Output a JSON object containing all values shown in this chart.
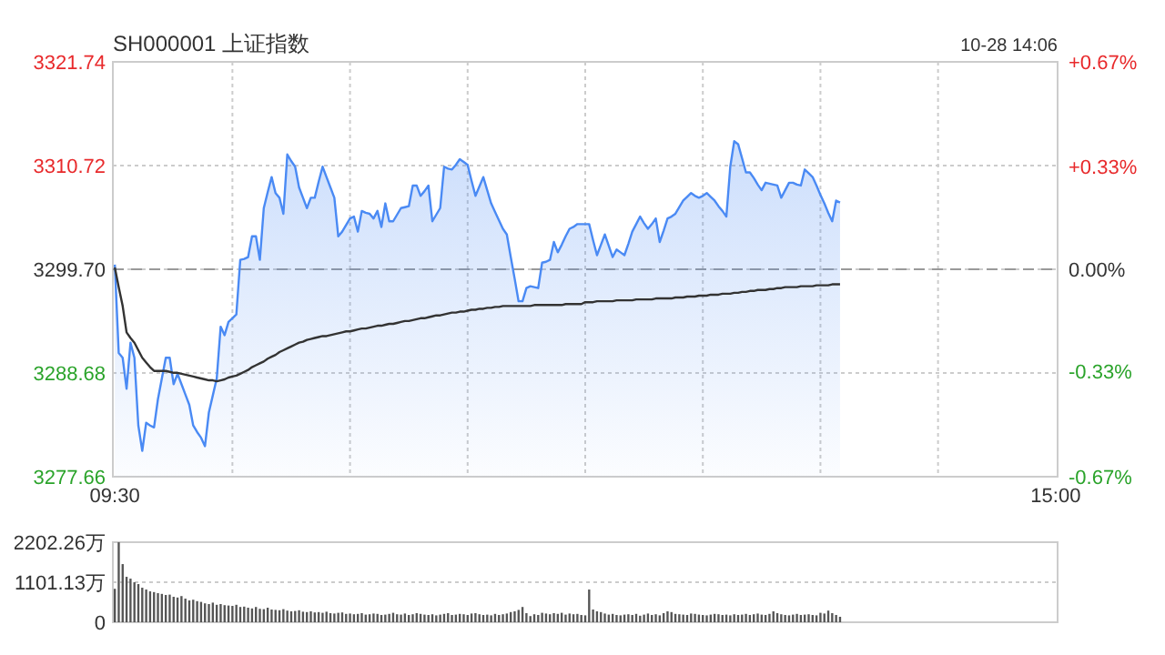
{
  "chart_data": [
    {
      "type": "area",
      "title": "SH000001 上证指数",
      "annotations": [
        "10-28 14:06"
      ],
      "categories": [
        "09:30",
        null,
        null,
        null,
        null,
        null,
        null,
        null,
        null,
        null,
        null,
        null,
        null,
        null,
        null,
        null,
        null,
        null,
        null,
        null,
        null,
        null,
        null,
        null,
        null,
        null,
        null,
        null,
        null,
        null,
        null,
        null,
        null,
        null,
        null,
        null,
        null,
        null,
        null,
        null,
        null,
        null,
        null,
        null,
        null,
        null,
        null,
        null,
        null,
        null,
        null,
        null,
        null,
        null,
        null,
        null,
        null,
        null,
        null,
        null,
        null,
        null,
        null,
        null,
        null,
        null,
        null,
        null,
        null,
        null,
        null,
        null,
        null,
        null,
        null,
        null,
        null,
        null,
        null,
        null,
        null,
        null,
        null,
        null,
        null,
        null,
        null,
        null,
        null,
        null,
        null,
        null,
        null,
        null,
        null,
        null,
        null,
        null,
        null,
        null,
        null,
        null,
        null,
        null,
        null,
        null,
        null,
        null,
        null,
        null,
        null,
        null,
        null,
        null,
        null,
        null,
        null,
        null,
        null,
        null,
        null,
        null,
        null,
        null,
        null,
        null,
        null,
        null,
        null,
        null,
        null,
        null,
        null,
        null,
        null,
        null,
        null,
        null,
        null,
        null,
        null,
        null,
        null,
        null,
        null,
        null,
        null,
        null,
        null,
        null,
        null,
        null,
        null,
        null,
        null,
        null,
        null,
        null,
        null,
        null,
        null,
        null,
        null,
        null,
        null,
        null,
        null,
        null,
        null,
        null,
        null,
        null,
        null,
        null,
        null,
        null,
        null,
        null,
        null,
        null,
        null,
        null,
        null,
        null,
        null,
        null,
        null,
        null,
        null,
        null,
        null,
        null,
        null,
        null,
        null,
        null,
        null,
        null,
        null,
        null,
        null,
        null,
        null,
        null,
        null,
        null,
        null,
        null,
        null,
        null,
        null,
        null,
        null,
        null,
        null,
        null,
        null,
        null,
        null,
        null,
        null,
        null,
        null,
        null,
        null,
        null,
        null,
        null,
        null,
        null,
        null,
        null,
        null,
        null,
        null,
        null,
        null,
        null,
        null,
        null,
        "15:00"
      ],
      "ylim": [
        3277.66,
        3321.74
      ],
      "yticks": [
        3277.66,
        3288.68,
        {
          "value": 3299.7,
          "label": "3299.70"
        },
        3310.72,
        3321.74
      ],
      "y2lim": [
        -0.67,
        0.67
      ],
      "y2ticks": [
        {
          "value": -0.67,
          "label": "-0.67%"
        },
        {
          "value": -0.33,
          "label": "-0.33%"
        },
        {
          "value": 0,
          "label": "0.00%"
        },
        {
          "value": 0.33,
          "label": "+0.33%"
        },
        {
          "value": 0.67,
          "label": "+0.67%"
        }
      ],
      "grid": true,
      "ref_lines": [
        {
          "axis": "y",
          "value": 3299.7,
          "line_style": "dashed",
          "color": "#999999"
        }
      ],
      "series": [
        {
          "color": "#4a8af4",
          "values": [
            3300.2,
            3290.8,
            3290.3,
            3287.0,
            3291.9,
            3290.3,
            3283.1,
            3280.4,
            3283.4,
            3283.1,
            3282.9,
            3285.9,
            3288.1,
            3290.3,
            3290.3,
            3287.5,
            3288.6,
            3287.5,
            3286.4,
            3285.3,
            3283.1,
            3282.4,
            3281.8,
            3280.9,
            3284.5,
            3286.3,
            3288.1,
            3293.6,
            3292.7,
            3294.1,
            3294.5,
            3294.9,
            3300.7,
            3300.8,
            3301.0,
            3303.2,
            3303.2,
            3300.7,
            3306.2,
            3307.9,
            3309.5,
            3307.8,
            3307.3,
            3305.6,
            3311.9,
            3311.2,
            3310.6,
            3308.4,
            3307.3,
            3306.2,
            3307.3,
            3307.3,
            3309.0,
            3310.6,
            3309.5,
            3308.4,
            3307.3,
            3303.2,
            3303.7,
            3304.4,
            3305.1,
            3305.3,
            3303.7,
            3305.9,
            3305.7,
            3305.6,
            3305.1,
            3305.9,
            3304.2,
            3306.7,
            3304.8,
            3304.8,
            3305.5,
            3306.2,
            3306.3,
            3306.4,
            3308.6,
            3308.6,
            3307.5,
            3308.0,
            3308.6,
            3304.8,
            3305.5,
            3306.2,
            3310.6,
            3310.4,
            3310.3,
            3310.8,
            3311.4,
            3311.1,
            3310.8,
            3309.1,
            3307.5,
            3308.5,
            3309.5,
            3308.1,
            3306.7,
            3305.8,
            3304.9,
            3304.0,
            3303.4,
            3301.0,
            3298.7,
            3296.3,
            3296.3,
            3297.7,
            3297.9,
            3297.8,
            3297.7,
            3300.4,
            3300.5,
            3300.7,
            3302.6,
            3301.5,
            3302.3,
            3303.2,
            3304.0,
            3304.2,
            3304.5,
            3304.5,
            3304.5,
            3304.5,
            3302.8,
            3301.2,
            3302.3,
            3303.4,
            3302.2,
            3301.0,
            3301.8,
            3301.5,
            3301.2,
            3302.4,
            3303.7,
            3304.5,
            3305.3,
            3304.6,
            3304.0,
            3304.5,
            3305.1,
            3302.6,
            3303.8,
            3305.1,
            3305.3,
            3305.6,
            3306.3,
            3307.0,
            3307.4,
            3307.8,
            3307.5,
            3307.3,
            3307.5,
            3307.8,
            3307.4,
            3307.0,
            3306.4,
            3305.9,
            3305.3,
            3310.6,
            3313.3,
            3313.0,
            3311.5,
            3310.0,
            3310.0,
            3309.4,
            3308.7,
            3308.1,
            3308.9,
            3308.8,
            3308.7,
            3308.6,
            3307.3,
            3308.1,
            3308.9,
            3308.9,
            3308.7,
            3308.6,
            3310.3,
            3309.9,
            3309.5,
            3308.6,
            3307.6,
            3306.7,
            3305.7,
            3304.8,
            3307.0,
            3306.8,
            null,
            null,
            null,
            null,
            null,
            null,
            null,
            null,
            null,
            null,
            null,
            null,
            null,
            null,
            null,
            null,
            null,
            null,
            null,
            null,
            null,
            null,
            null,
            null,
            null,
            null,
            null,
            null,
            null,
            null,
            null,
            null,
            null,
            null,
            null,
            null,
            null,
            null,
            null,
            null,
            null,
            null,
            null,
            null,
            null,
            null,
            null,
            null,
            null,
            null,
            null,
            null,
            null,
            null,
            null
          ]
        },
        {
          "type": "line",
          "color": "#333333",
          "values": [
            3299.9,
            3297.8,
            3295.8,
            3293.0,
            3292.4,
            3291.9,
            3291.1,
            3290.3,
            3289.8,
            3289.3,
            3288.9,
            3288.9,
            3288.9,
            3288.9,
            3288.8,
            3288.7,
            3288.7,
            3288.6,
            3288.5,
            3288.4,
            3288.3,
            3288.2,
            3288.1,
            3288.0,
            3287.9,
            3287.9,
            3287.8,
            3287.9,
            3288.0,
            3288.2,
            3288.3,
            3288.4,
            3288.6,
            3288.8,
            3289.0,
            3289.3,
            3289.5,
            3289.7,
            3289.9,
            3290.2,
            3290.4,
            3290.6,
            3290.9,
            3291.1,
            3291.3,
            3291.5,
            3291.7,
            3291.9,
            3292.0,
            3292.2,
            3292.3,
            3292.4,
            3292.5,
            3292.6,
            3292.6,
            3292.7,
            3292.8,
            3292.9,
            3293.0,
            3293.1,
            3293.1,
            3293.2,
            3293.3,
            3293.4,
            3293.4,
            3293.5,
            3293.6,
            3293.7,
            3293.7,
            3293.8,
            3293.9,
            3293.9,
            3294.0,
            3294.1,
            3294.2,
            3294.2,
            3294.3,
            3294.4,
            3294.5,
            3294.5,
            3294.6,
            3294.7,
            3294.8,
            3294.8,
            3294.9,
            3295.0,
            3295.1,
            3295.1,
            3295.2,
            3295.2,
            3295.3,
            3295.4,
            3295.4,
            3295.5,
            3295.5,
            3295.6,
            3295.6,
            3295.7,
            3295.7,
            3295.8,
            3295.8,
            3295.8,
            3295.8,
            3295.8,
            3295.8,
            3295.8,
            3295.8,
            3295.9,
            3295.9,
            3295.9,
            3295.9,
            3295.9,
            3295.9,
            3295.9,
            3295.9,
            3296.0,
            3296.0,
            3296.0,
            3296.0,
            3296.0,
            3296.2,
            3296.2,
            3296.2,
            3296.3,
            3296.3,
            3296.3,
            3296.3,
            3296.3,
            3296.4,
            3296.4,
            3296.4,
            3296.4,
            3296.4,
            3296.5,
            3296.5,
            3296.5,
            3296.5,
            3296.5,
            3296.6,
            3296.6,
            3296.6,
            3296.6,
            3296.6,
            3296.7,
            3296.7,
            3296.7,
            3296.8,
            3296.8,
            3296.8,
            3296.9,
            3296.9,
            3296.9,
            3297.0,
            3297.0,
            3297.0,
            3297.1,
            3297.1,
            3297.1,
            3297.2,
            3297.2,
            3297.3,
            3297.3,
            3297.4,
            3297.4,
            3297.5,
            3297.5,
            3297.5,
            3297.6,
            3297.6,
            3297.7,
            3297.7,
            3297.8,
            3297.8,
            3297.8,
            3297.8,
            3297.9,
            3297.9,
            3297.9,
            3297.9,
            3298.0,
            3298.0,
            3298.0,
            3298.0,
            3298.1,
            3298.1,
            3298.1,
            null,
            null,
            null,
            null,
            null,
            null,
            null,
            null,
            null,
            null,
            null,
            null,
            null,
            null,
            null,
            null,
            null,
            null,
            null,
            null,
            null,
            null,
            null,
            null,
            null,
            null,
            null,
            null,
            null,
            null,
            null,
            null,
            null,
            null,
            null,
            null,
            null,
            null,
            null,
            null,
            null,
            null,
            null,
            null,
            null,
            null,
            null,
            null,
            null,
            null,
            null,
            null,
            null,
            null,
            null
          ]
        }
      ]
    },
    {
      "type": "bar",
      "tick_labels": "y",
      "grid": "y",
      "categories": [
        null,
        null,
        null,
        null,
        null,
        null,
        null,
        null,
        null,
        null,
        null,
        null,
        null,
        null,
        null,
        null,
        null,
        null,
        null,
        null,
        null,
        null,
        null,
        null,
        null,
        null,
        null,
        null,
        null,
        null,
        null,
        null,
        null,
        null,
        null,
        null,
        null,
        null,
        null,
        null,
        null,
        null,
        null,
        null,
        null,
        null,
        null,
        null,
        null,
        null,
        null,
        null,
        null,
        null,
        null,
        null,
        null,
        null,
        null,
        null,
        null,
        null,
        null,
        null,
        null,
        null,
        null,
        null,
        null,
        null,
        null,
        null,
        null,
        null,
        null,
        null,
        null,
        null,
        null,
        null,
        null,
        null,
        null,
        null,
        null,
        null,
        null,
        null,
        null,
        null,
        null,
        null,
        null,
        null,
        null,
        null,
        null,
        null,
        null,
        null,
        null,
        null,
        null,
        null,
        null,
        null,
        null,
        null,
        null,
        null,
        null,
        null,
        null,
        null,
        null,
        null,
        null,
        null,
        null,
        null,
        null,
        null,
        null,
        null,
        null,
        null,
        null,
        null,
        null,
        null,
        null,
        null,
        null,
        null,
        null,
        null,
        null,
        null,
        null,
        null,
        null,
        null,
        null,
        null,
        null,
        null,
        null,
        null,
        null,
        null,
        null,
        null,
        null,
        null,
        null,
        null,
        null,
        null,
        null,
        null,
        null,
        null,
        null,
        null,
        null,
        null,
        null,
        null,
        null,
        null,
        null,
        null,
        null,
        null,
        null,
        null,
        null,
        null,
        null,
        null,
        null,
        null,
        null,
        null,
        null,
        null,
        null,
        null,
        null,
        null,
        null,
        null,
        null,
        null,
        null,
        null,
        null,
        null,
        null,
        null,
        null,
        null,
        null,
        null,
        null,
        null,
        null,
        null,
        null,
        null,
        null,
        null,
        null,
        null,
        null,
        null,
        null,
        null,
        null,
        null,
        null,
        null,
        null,
        null,
        null,
        null,
        null,
        null,
        null,
        null,
        null,
        null,
        null,
        null,
        null,
        null,
        null,
        null,
        null,
        null,
        null
      ],
      "ylim": [
        0,
        2202.26
      ],
      "yticks": [
        0,
        {
          "value": 1101.13,
          "label": "1101.13万"
        },
        {
          "value": 2202.26,
          "label": "2202.26万"
        }
      ],
      "series": [
        {
          "color": "#555555",
          "values": [
            920,
            2200,
            1600,
            1250,
            1200,
            1100,
            1050,
            950,
            900,
            850,
            830,
            800,
            780,
            750,
            760,
            700,
            680,
            720,
            650,
            600,
            620,
            580,
            560,
            520,
            500,
            540,
            480,
            500,
            470,
            460,
            450,
            480,
            420,
            430,
            400,
            380,
            420,
            370,
            360,
            400,
            350,
            340,
            330,
            360,
            320,
            300,
            310,
            330,
            290,
            280,
            300,
            270,
            280,
            260,
            290,
            250,
            240,
            260,
            270,
            230,
            240,
            220,
            230,
            250,
            210,
            220,
            240,
            230,
            200,
            210,
            230,
            260,
            220,
            210,
            240,
            200,
            220,
            250,
            230,
            210,
            200,
            220,
            190,
            210,
            230,
            250,
            200,
            210,
            230,
            220,
            200,
            240,
            250,
            220,
            200,
            210,
            190,
            230,
            200,
            220,
            240,
            280,
            300,
            340,
            420,
            250,
            170,
            220,
            200,
            260,
            240,
            220,
            250,
            230,
            260,
            210,
            240,
            220,
            230,
            200,
            190,
            900,
            350,
            300,
            280,
            240,
            210,
            230,
            200,
            190,
            210,
            220,
            200,
            230,
            180,
            210,
            240,
            200,
            220,
            190,
            250,
            300,
            280,
            230,
            220,
            210,
            200,
            240,
            230,
            210,
            200,
            190,
            210,
            230,
            220,
            200,
            210,
            190,
            220,
            200,
            210,
            230,
            200,
            220,
            240,
            210,
            200,
            230,
            300,
            250,
            220,
            200,
            190,
            210,
            230,
            200,
            210,
            220,
            200,
            190,
            260,
            240,
            320,
            250,
            200,
            150,
            null,
            null,
            null,
            null,
            null,
            null,
            null,
            null,
            null,
            null,
            null,
            null,
            null,
            null,
            null,
            null,
            null,
            null,
            null,
            null,
            null,
            null,
            null,
            null,
            null,
            null,
            null,
            null,
            null,
            null,
            null,
            null,
            null,
            null,
            null,
            null,
            null,
            null,
            null,
            null,
            null,
            null,
            null,
            null,
            null,
            null,
            null,
            null,
            null,
            null,
            null,
            null,
            null,
            null,
            null
          ]
        }
      ]
    }
  ]
}
